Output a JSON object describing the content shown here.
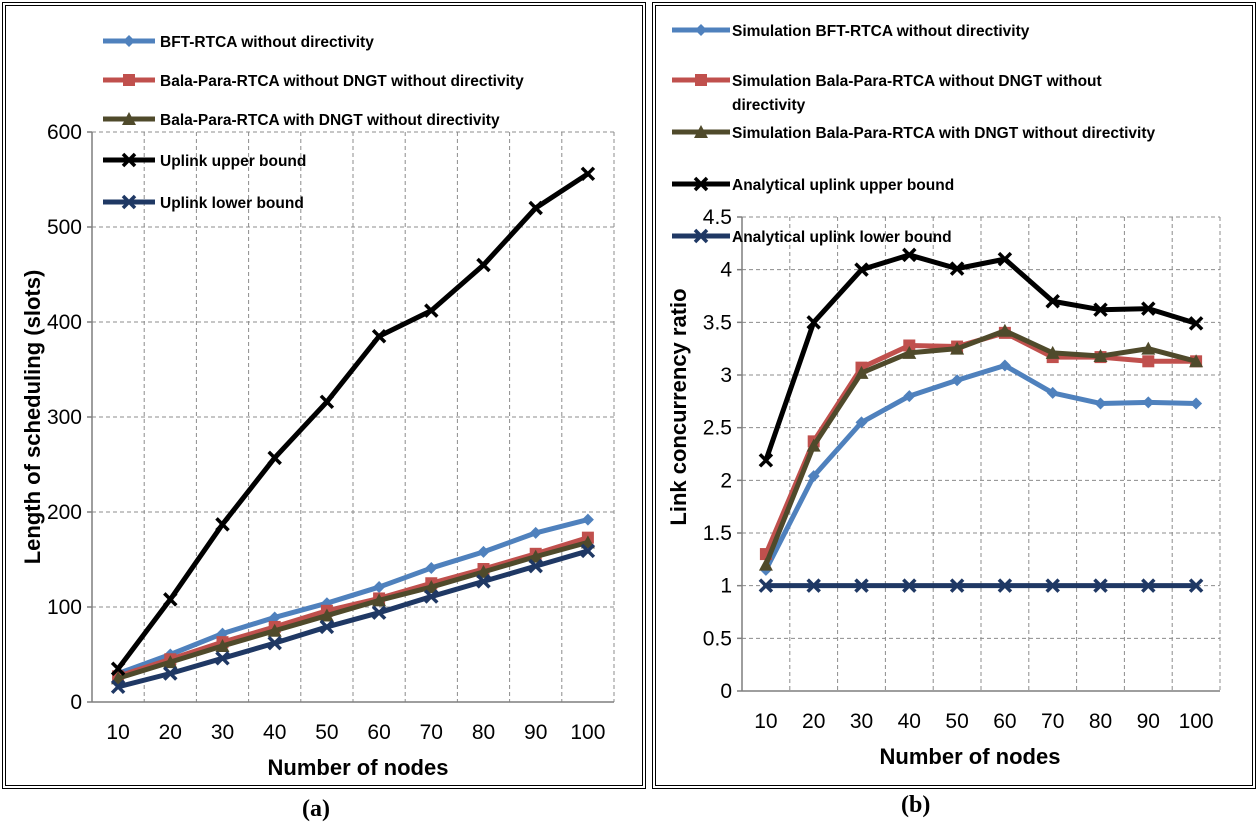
{
  "captions": {
    "a": "(a)",
    "b": "(b)"
  },
  "chart_data": [
    {
      "type": "line",
      "title": "",
      "xlabel": "Number of nodes",
      "ylabel": "Length of scheduling (slots)",
      "x": [
        10,
        20,
        30,
        40,
        50,
        60,
        70,
        80,
        90,
        100
      ],
      "ylim": [
        0,
        600
      ],
      "yticks": [
        0,
        100,
        200,
        300,
        400,
        500,
        600
      ],
      "grid": true,
      "legend": "top-left",
      "series": [
        {
          "name": "BFT-RTCA without directivity",
          "color": "#4F81BD",
          "marker": "diamond",
          "values": [
            30,
            50,
            72,
            89,
            104,
            121,
            141,
            158,
            178,
            192
          ]
        },
        {
          "name": "Bala-Para-RTCA without DNGT without directivity",
          "color": "#C0504D",
          "marker": "square",
          "values": [
            27,
            45,
            63,
            79,
            96,
            109,
            125,
            140,
            156,
            173
          ]
        },
        {
          "name": "Bala-Para-RTCA with DNGT without directivity",
          "color": "#4F4A2B",
          "marker": "triangle",
          "values": [
            25,
            42,
            59,
            75,
            91,
            107,
            121,
            137,
            153,
            168
          ]
        },
        {
          "name": "Uplink upper bound",
          "color": "#000000",
          "marker": "x",
          "values": [
            35,
            108,
            187,
            257,
            316,
            385,
            412,
            460,
            520,
            556
          ]
        },
        {
          "name": "Uplink lower bound",
          "color": "#1F3864",
          "marker": "x",
          "values": [
            16,
            30,
            46,
            62,
            79,
            94,
            111,
            127,
            143,
            159
          ]
        }
      ]
    },
    {
      "type": "line",
      "title": "",
      "xlabel": "Number of nodes",
      "ylabel": "Link concurrency ratio",
      "x": [
        10,
        20,
        30,
        40,
        50,
        60,
        70,
        80,
        90,
        100
      ],
      "ylim": [
        0,
        4.5
      ],
      "yticks": [
        "0",
        "0.5",
        "1",
        "1.5",
        "2",
        "2.5",
        "3",
        "3.5",
        "4",
        "4.5"
      ],
      "grid": true,
      "legend": "top",
      "series": [
        {
          "name": "Simulation BFT-RTCA without directivity",
          "color": "#4F81BD",
          "marker": "diamond",
          "values": [
            1.15,
            2.04,
            2.55,
            2.8,
            2.95,
            3.09,
            2.83,
            2.73,
            2.74,
            2.73
          ]
        },
        {
          "name": "Simulation Bala-Para-RTCA without DNGT without directivity",
          "color": "#C0504D",
          "marker": "square",
          "values": [
            1.3,
            2.37,
            3.07,
            3.28,
            3.27,
            3.4,
            3.17,
            3.17,
            3.13,
            3.13
          ]
        },
        {
          "name": "Simulation Bala-Para-RTCA with DNGT without directivity",
          "color": "#4F4A2B",
          "marker": "triangle",
          "values": [
            1.2,
            2.33,
            3.02,
            3.21,
            3.25,
            3.42,
            3.21,
            3.18,
            3.25,
            3.13
          ]
        },
        {
          "name": "Analytical uplink upper bound",
          "color": "#000000",
          "marker": "x",
          "values": [
            2.19,
            3.5,
            4.0,
            4.14,
            4.01,
            4.1,
            3.7,
            3.62,
            3.63,
            3.49
          ]
        },
        {
          "name": "Analytical uplink lower bound",
          "color": "#1F3864",
          "marker": "x",
          "values": [
            1,
            1,
            1,
            1,
            1,
            1,
            1,
            1,
            1,
            1
          ]
        }
      ]
    }
  ]
}
